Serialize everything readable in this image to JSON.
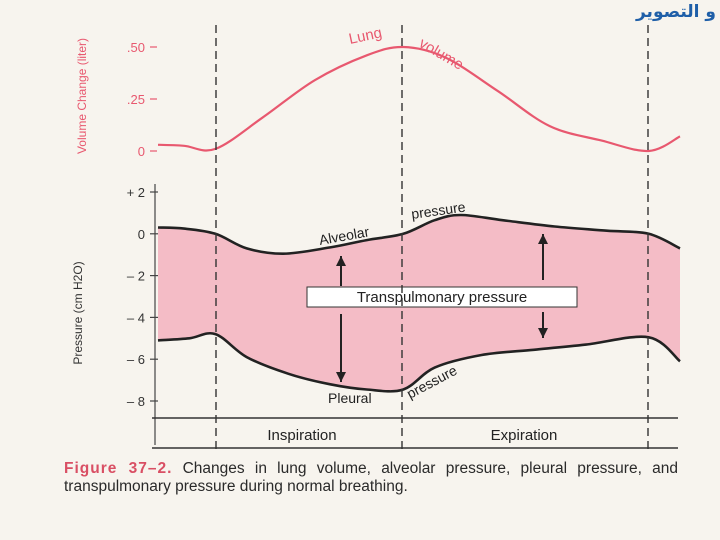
{
  "corner_text": "و التصوير",
  "caption": {
    "figure_label": "Figure 37–2.",
    "text": "Changes in lung volume, alveolar pressure, pleural pressure, and transpulmonary pressure during normal breathing."
  },
  "colors": {
    "volume": "#e8586f",
    "band_fill": "#f4bcc6",
    "curve": "#222222",
    "axis_text_volume": "#e8586f",
    "axis_text_pressure": "#333333"
  },
  "chart_data": [
    {
      "type": "line",
      "title": "Lung volume",
      "ylabel": "Volume Change (liter)",
      "ylim": [
        0,
        0.5
      ],
      "yticks": [
        ".50",
        ".25",
        "0"
      ],
      "xlim": [
        0,
        1
      ],
      "series": [
        {
          "name": "Lung volume",
          "label_parts": [
            "Lung",
            "volume"
          ],
          "points": [
            [
              0.0,
              0.03
            ],
            [
              0.05,
              0.025
            ],
            [
              0.11,
              0.01
            ],
            [
              0.2,
              0.16
            ],
            [
              0.3,
              0.34
            ],
            [
              0.4,
              0.46
            ],
            [
              0.47,
              0.5
            ],
            [
              0.55,
              0.45
            ],
            [
              0.65,
              0.29
            ],
            [
              0.75,
              0.12
            ],
            [
              0.85,
              0.05
            ],
            [
              0.94,
              0.0
            ],
            [
              1.0,
              0.07
            ]
          ]
        }
      ]
    },
    {
      "type": "line",
      "ylabel": "Pressure (cm H2O)",
      "ylim": [
        -8,
        2
      ],
      "yticks": [
        "+ 2",
        "0",
        "– 2",
        "– 4",
        "– 6",
        "– 8"
      ],
      "xlim": [
        0,
        1
      ],
      "series": [
        {
          "name": "Alveolar pressure",
          "label_parts": [
            "Alveolar",
            "pressure"
          ],
          "points": [
            [
              0.0,
              0.3
            ],
            [
              0.05,
              0.25
            ],
            [
              0.11,
              0.0
            ],
            [
              0.17,
              -0.7
            ],
            [
              0.24,
              -0.95
            ],
            [
              0.33,
              -0.65
            ],
            [
              0.4,
              -0.3
            ],
            [
              0.47,
              0.0
            ],
            [
              0.53,
              0.65
            ],
            [
              0.58,
              0.9
            ],
            [
              0.66,
              0.65
            ],
            [
              0.76,
              0.35
            ],
            [
              0.86,
              0.15
            ],
            [
              0.94,
              0.0
            ],
            [
              1.0,
              -0.7
            ]
          ]
        },
        {
          "name": "Pleural pressure",
          "label_parts": [
            "Pleural",
            "pressure"
          ],
          "points": [
            [
              0.0,
              -5.1
            ],
            [
              0.06,
              -5.0
            ],
            [
              0.11,
              -4.8
            ],
            [
              0.17,
              -5.9
            ],
            [
              0.25,
              -6.7
            ],
            [
              0.33,
              -7.2
            ],
            [
              0.4,
              -7.45
            ],
            [
              0.47,
              -7.45
            ],
            [
              0.53,
              -6.4
            ],
            [
              0.62,
              -5.8
            ],
            [
              0.72,
              -5.55
            ],
            [
              0.82,
              -5.3
            ],
            [
              0.94,
              -4.95
            ],
            [
              1.0,
              -6.1
            ]
          ]
        }
      ],
      "annotations": {
        "transpulmonary_label": "Transpulmonary pressure"
      }
    }
  ],
  "phases": {
    "inspiration": "Inspiration",
    "expiration": "Expiration"
  }
}
